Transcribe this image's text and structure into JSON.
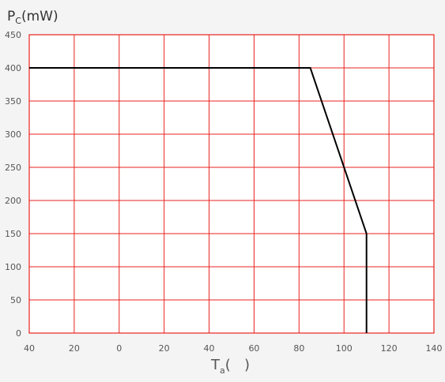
{
  "chart_data": {
    "type": "line",
    "ylabel": {
      "main": "P",
      "sub": "C",
      "rest": "(mW)"
    },
    "xlabel": {
      "main": "T",
      "sub": "a",
      "rest": "(   )"
    },
    "x_ticks": [
      "40",
      "20",
      "0",
      "20",
      "40",
      "60",
      "80",
      "100",
      "120",
      "140"
    ],
    "x_tick_values": [
      -40,
      -20,
      0,
      20,
      40,
      60,
      80,
      100,
      120,
      140
    ],
    "y_ticks": [
      "450",
      "400",
      "350",
      "300",
      "250",
      "200",
      "150",
      "100",
      "50",
      "0"
    ],
    "y_tick_values": [
      450,
      400,
      350,
      300,
      250,
      200,
      150,
      100,
      50,
      0
    ],
    "xlim": [
      -40,
      140
    ],
    "ylim": [
      0,
      450
    ],
    "grid": true,
    "colors": {
      "grid": "#e8231f",
      "line": "#000000",
      "background": "#f4f4f4",
      "plot_background": "#ffffff"
    },
    "series": [
      {
        "x": [
          -40,
          85,
          110,
          110
        ],
        "y": [
          400,
          400,
          150,
          0
        ]
      }
    ]
  }
}
